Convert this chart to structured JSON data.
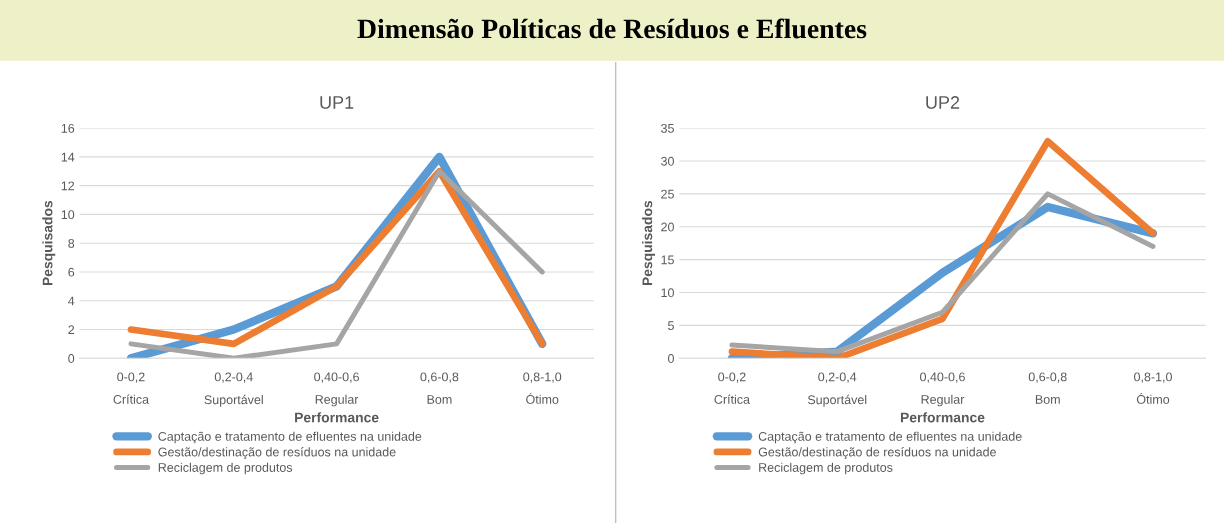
{
  "chart_data": [
    {
      "type": "line",
      "title": "UP1",
      "xlabel": "Performance",
      "ylabel": "Pesquisados",
      "annotations": [
        "Dimensão Políticas de Resíduos e Efluentes"
      ],
      "categories": [
        "0-0,2\nCrítica",
        "0,2-0,4\nSuportável",
        "0,40-0,6\nRegular",
        "0,6-0,8\nBom",
        "0,8-1,0\nÓtimo"
      ],
      "series": [
        {
          "name": "Captação e tratamento de efluentes na unidade",
          "color": "#5b9bd5",
          "values": [
            0,
            2,
            5,
            14,
            1
          ]
        },
        {
          "name": "Gestão/destinação de resíduos na unidade",
          "color": "#ed7d31",
          "values": [
            2,
            1,
            5,
            13,
            1
          ]
        },
        {
          "name": "Reciclagem de produtos",
          "color": "#a5a5a5",
          "values": [
            1,
            0,
            1,
            13,
            6
          ]
        }
      ],
      "ylim": [
        0,
        16
      ],
      "yticks": [
        0,
        2,
        4,
        6,
        8,
        10,
        12,
        14,
        16
      ],
      "grid": "y",
      "legend": "bottom",
      "marker": "none",
      "line_style": "solid"
    },
    {
      "type": "line",
      "title": "UP2",
      "xlabel": "Performance",
      "ylabel": "Pesquisados",
      "categories": [
        "0-0,2\nCrítica",
        "0,2-0,4\nSuportável",
        "0,40-0,6\nRegular",
        "0,6-0,8\nBom",
        "0,8-1,0\nÓtimo"
      ],
      "series": [
        {
          "name": "Captação e tratamento de efluentes na unidade",
          "color": "#5b9bd5",
          "values": [
            0,
            1,
            13,
            23,
            19
          ]
        },
        {
          "name": "Gestão/destinação de resíduos na unidade",
          "color": "#ed7d31",
          "values": [
            1,
            0,
            6,
            33,
            19
          ]
        },
        {
          "name": "Reciclagem de produtos",
          "color": "#a5a5a5",
          "values": [
            2,
            1,
            7,
            25,
            17
          ]
        }
      ],
      "ylim": [
        0,
        35
      ],
      "yticks": [
        0,
        5,
        10,
        15,
        20,
        25,
        30,
        35
      ],
      "grid": "y",
      "legend": "bottom",
      "marker": "none",
      "line_style": "solid"
    }
  ]
}
